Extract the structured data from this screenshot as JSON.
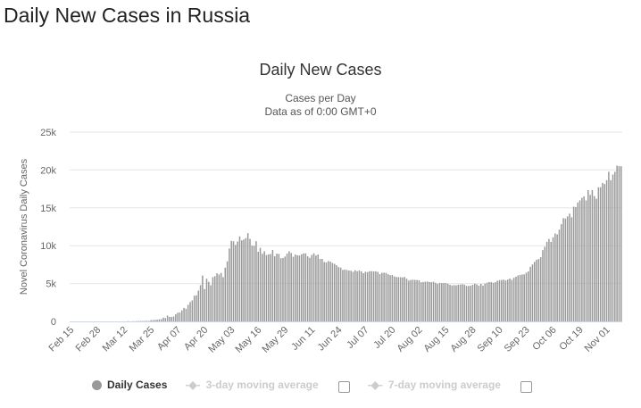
{
  "page_title": "Daily New Cases in Russia",
  "legend": {
    "daily": "Daily Cases",
    "avg3": "3-day moving average",
    "avg7": "7-day moving average"
  },
  "chart_data": {
    "type": "bar",
    "title": "Daily New Cases",
    "subtitle": [
      "Cases per Day",
      "Data as of 0:00 GMT+0"
    ],
    "ylabel": "Novel Coronavirus Daily Cases",
    "xlabel": "",
    "ylim": [
      0,
      25000
    ],
    "yticks": [
      {
        "v": 0,
        "l": "0"
      },
      {
        "v": 5000,
        "l": "5k"
      },
      {
        "v": 10000,
        "l": "10k"
      },
      {
        "v": 15000,
        "l": "15k"
      },
      {
        "v": 20000,
        "l": "20k"
      },
      {
        "v": 25000,
        "l": "25k"
      }
    ],
    "xtick_labels": [
      "Feb 15",
      "Feb 28",
      "Mar 12",
      "Mar 25",
      "Apr 07",
      "Apr 20",
      "May 03",
      "May 16",
      "May 29",
      "Jun 11",
      "Jun 24",
      "Jul 07",
      "Jul 20",
      "Aug 02",
      "Aug 15",
      "Aug 28",
      "Sep 10",
      "Sep 23",
      "Oct 06",
      "Oct 19",
      "Nov 01"
    ],
    "xtick_step_days": 13,
    "start_date": "Feb 15",
    "bar_color": "#999999",
    "grid": true,
    "legend_position": "bottom",
    "values": [
      0,
      0,
      0,
      0,
      0,
      0,
      0,
      0,
      0,
      0,
      0,
      0,
      0,
      0,
      0,
      0,
      1,
      0,
      0,
      0,
      0,
      3,
      0,
      0,
      3,
      0,
      6,
      6,
      34,
      0,
      30,
      21,
      33,
      52,
      54,
      53,
      62,
      71,
      57,
      163,
      182,
      196,
      228,
      270,
      302,
      500,
      440,
      771,
      601,
      582,
      658,
      954,
      1154,
      1175,
      1459,
      1786,
      1667,
      2186,
      2558,
      2774,
      3388,
      3448,
      4070,
      4785,
      6060,
      4268,
      5642,
      5236,
      4774,
      5849,
      5966,
      6361,
      6198,
      6411,
      5841,
      7099,
      7933,
      9623,
      10633,
      10581,
      10102,
      10559,
      11231,
      10699,
      10817,
      11012,
      11656,
      10899,
      10028,
      9974,
      10598,
      9200,
      9709,
      8926,
      9263,
      8764,
      8849,
      8894,
      9434,
      8599,
      8946,
      8915,
      8338,
      8371,
      8572,
      8952,
      9268,
      9035,
      8536,
      8831,
      8726,
      8705,
      8855,
      8984,
      8985,
      8595,
      8404,
      8779,
      8987,
      8706,
      8835,
      8246,
      8248,
      7843,
      7790,
      7972,
      7889,
      7728,
      7600,
      7425,
      7176,
      7113,
      6800,
      6852,
      6791,
      6719,
      6693,
      6556,
      6760,
      6632,
      6736,
      6611,
      6368,
      6562,
      6509,
      6635,
      6632,
      6611,
      6615,
      6537,
      6248,
      6422,
      6428,
      6406,
      6234,
      6109,
      6139,
      5940,
      5862,
      5848,
      5842,
      5811,
      5871,
      5635,
      5395,
      5475,
      5509,
      5482,
      5462,
      5427,
      5159,
      5204,
      5241,
      5267,
      5212,
      5189,
      5241,
      5102,
      4945,
      5102,
      5057,
      5065,
      5061,
      4969,
      4839,
      4748,
      4790,
      4767,
      4838,
      4870,
      4921,
      4852,
      4696,
      4676,
      4711,
      4829,
      4980,
      4897,
      4729,
      4952,
      4729,
      4995,
      5110,
      5205,
      5185,
      5099,
      5172,
      5363,
      5449,
      5475,
      5509,
      5406,
      5529,
      5670,
      5488,
      5762,
      5905,
      6065,
      6148,
      6196,
      6215,
      6431,
      6595,
      7212,
      7523,
      7867,
      8135,
      8232,
      8481,
      9412,
      9859,
      10499,
      10888,
      10499,
      11115,
      11615,
      11493,
      12126,
      12846,
      13634,
      13592,
      13868,
      14231,
      13754,
      15150,
      15099,
      15700,
      15982,
      16319,
      16521,
      15982,
      17340,
      16710,
      17347,
      16550,
      16202,
      17717,
      17717,
      18283,
      18140,
      18665,
      19768,
      18648,
      19404,
      19768,
      20582,
      20498,
      20498
    ]
  }
}
